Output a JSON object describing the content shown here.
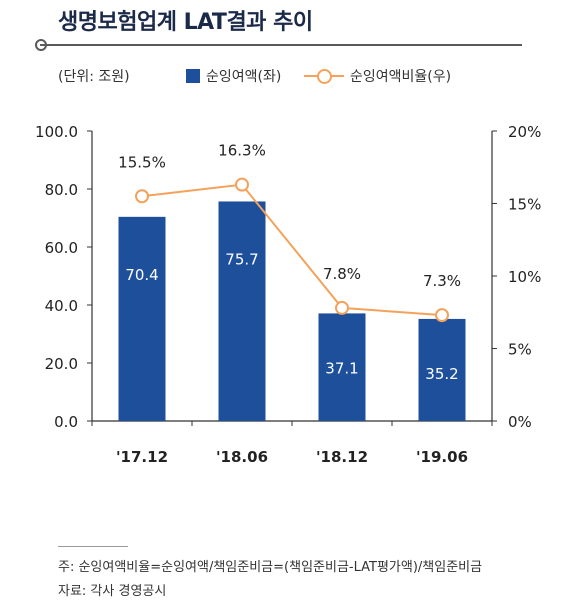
{
  "title": "생명보험업계 LAT결과 추이",
  "unit_label": "(단위: 조원)",
  "legend": {
    "bar_label": "순잉여액(좌)",
    "line_label": "순잉여액비율(우)"
  },
  "colors": {
    "bar": "#1d4f9a",
    "line": "#f4a25b",
    "axis": "#333333"
  },
  "footnote": {
    "note": "주: 순잉여액비율=순잉여액/책임준비금=(책임준비금-LAT평가액)/책임준비금",
    "source": "자료: 각사 경영공시"
  },
  "chart_data": {
    "type": "bar",
    "title": "생명보험업계 LAT결과 추이",
    "categories": [
      "'17.12",
      "'18.06",
      "'18.12",
      "'19.06"
    ],
    "series": [
      {
        "name": "순잉여액(좌)",
        "type": "bar",
        "axis": "left",
        "values": [
          70.4,
          75.7,
          37.1,
          35.2
        ],
        "labels": [
          "70.4",
          "75.7",
          "37.1",
          "35.2"
        ]
      },
      {
        "name": "순잉여액비율(우)",
        "type": "line",
        "axis": "right",
        "values": [
          15.5,
          16.3,
          7.8,
          7.3
        ],
        "labels": [
          "15.5%",
          "16.3%",
          "7.8%",
          "7.3%"
        ]
      }
    ],
    "y_left": {
      "ylim": [
        0,
        100
      ],
      "ticks": [
        "0.0",
        "20.0",
        "40.0",
        "60.0",
        "80.0",
        "100.0"
      ]
    },
    "y_right": {
      "ylim": [
        0,
        20
      ],
      "ticks": [
        "0%",
        "5%",
        "10%",
        "15%",
        "20%"
      ]
    },
    "grid": false,
    "legend_position": "top"
  }
}
